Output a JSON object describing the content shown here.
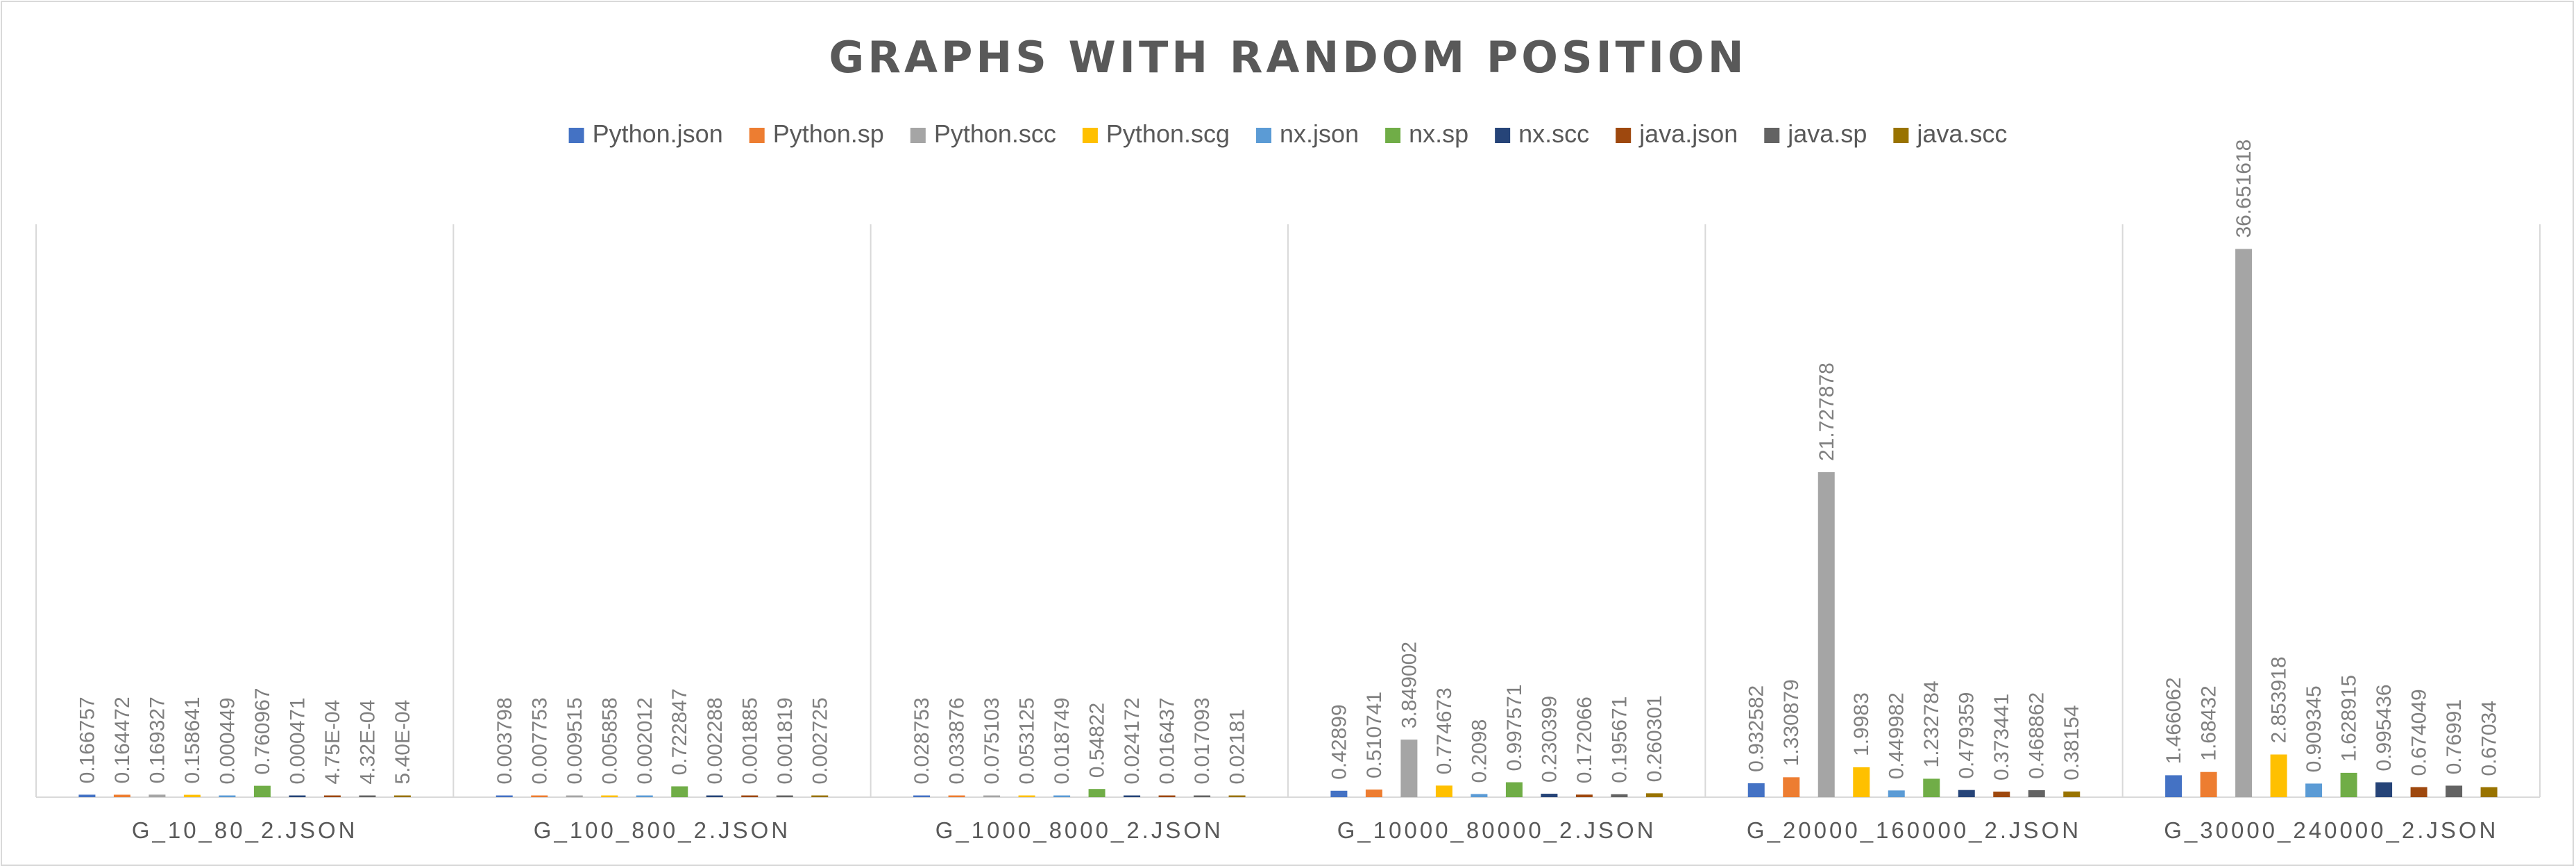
{
  "chart_data": {
    "type": "bar",
    "title": "GRAPHS WITH RANDOM POSITION",
    "xlabel": "",
    "ylabel": "",
    "ylim": [
      0,
      39
    ],
    "legend_position": "top-center",
    "grid": false,
    "categories": [
      "G_10_80_2.JSON",
      "G_100_800_2.JSON",
      "G_1000_8000_2.JSON",
      "G_10000_80000_2.JSON",
      "G_20000_160000_2.JSON",
      "G_30000_240000_2.JSON"
    ],
    "series": [
      {
        "name": "Python.json",
        "color": "#4472c4",
        "values": [
          0.166757,
          0.003798,
          0.028753,
          0.42899,
          0.932582,
          1.466062
        ],
        "labels": [
          "0.166757",
          "0.003798",
          "0.028753",
          "0.42899",
          "0.932582",
          "1.466062"
        ]
      },
      {
        "name": "Python.sp",
        "color": "#ed7d31",
        "values": [
          0.164472,
          0.007753,
          0.033876,
          0.510741,
          1.330879,
          1.68432
        ],
        "labels": [
          "0.164472",
          "0.007753",
          "0.033876",
          "0.510741",
          "1.330879",
          "1.68432"
        ]
      },
      {
        "name": "Python.scc",
        "color": "#a5a5a5",
        "values": [
          0.169327,
          0.009515,
          0.075103,
          3.849002,
          21.727878,
          36.651618
        ],
        "labels": [
          "0.169327",
          "0.009515",
          "0.075103",
          "3.849002",
          "21.727878",
          "36.651618"
        ]
      },
      {
        "name": "Python.scg",
        "color": "#ffc000",
        "values": [
          0.158641,
          0.005858,
          0.053125,
          0.774673,
          1.9983,
          2.853918
        ],
        "labels": [
          "0.158641",
          "0.005858",
          "0.053125",
          "0.774673",
          "1.9983",
          "2.853918"
        ]
      },
      {
        "name": "nx.json",
        "color": "#5b9bd5",
        "values": [
          0.000449,
          0.002012,
          0.018749,
          0.2098,
          0.449982,
          0.909345
        ],
        "labels": [
          "0.000449",
          "0.002012",
          "0.018749",
          "0.2098",
          "0.449982",
          "0.909345"
        ]
      },
      {
        "name": "nx.sp",
        "color": "#70ad47",
        "values": [
          0.760967,
          0.722847,
          0.54822,
          0.997571,
          1.232784,
          1.628915
        ],
        "labels": [
          "0.760967",
          "0.722847",
          "0.54822",
          "0.997571",
          "1.232784",
          "1.628915"
        ]
      },
      {
        "name": "nx.scc",
        "color": "#264478",
        "values": [
          0.000471,
          0.002288,
          0.024172,
          0.230399,
          0.479359,
          0.995436
        ],
        "labels": [
          "0.000471",
          "0.002288",
          "0.024172",
          "0.230399",
          "0.479359",
          "0.995436"
        ]
      },
      {
        "name": "java.json",
        "color": "#9e480e",
        "values": [
          0.000475,
          0.001885,
          0.016437,
          0.172066,
          0.373441,
          0.674049
        ],
        "labels": [
          "4.75E-04",
          "0.001885",
          "0.016437",
          "0.172066",
          "0.373441",
          "0.674049"
        ]
      },
      {
        "name": "java.sp",
        "color": "#636363",
        "values": [
          0.000432,
          0.001819,
          0.017093,
          0.195671,
          0.468862,
          0.76991
        ],
        "labels": [
          "4.32E-04",
          "0.001819",
          "0.017093",
          "0.195671",
          "0.468862",
          "0.76991"
        ]
      },
      {
        "name": "java.scc",
        "color": "#997300",
        "values": [
          0.00054,
          0.002725,
          0.02181,
          0.260301,
          0.38154,
          0.67034
        ],
        "labels": [
          "5.40E-04",
          "0.002725",
          "0.02181",
          "0.260301",
          "0.38154",
          "0.67034"
        ]
      }
    ]
  }
}
